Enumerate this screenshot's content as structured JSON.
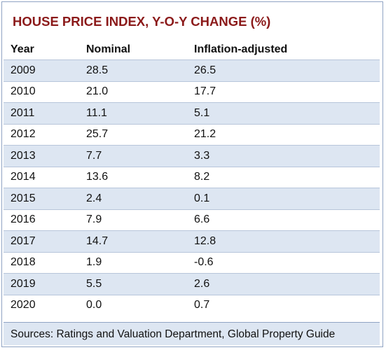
{
  "chart_data": {
    "type": "table",
    "title": "HOUSE PRICE INDEX, Y-O-Y CHANGE (%)",
    "columns": [
      "Year",
      "Nominal",
      "Inflation-adjusted"
    ],
    "rows": [
      [
        "2009",
        "28.5",
        "26.5"
      ],
      [
        "2010",
        "21.0",
        "17.7"
      ],
      [
        "2011",
        "11.1",
        "5.1"
      ],
      [
        "2012",
        "25.7",
        "21.2"
      ],
      [
        "2013",
        "7.7",
        "3.3"
      ],
      [
        "2014",
        "13.6",
        "8.2"
      ],
      [
        "2015",
        "2.4",
        "0.1"
      ],
      [
        "2016",
        "7.9",
        "6.6"
      ],
      [
        "2017",
        "14.7",
        "12.8"
      ],
      [
        "2018",
        "1.9",
        "-0.6"
      ],
      [
        "2019",
        "5.5",
        "2.6"
      ],
      [
        "2020",
        "0.0",
        "0.7"
      ]
    ],
    "source": "Sources: Ratings and Valuation Department, Global Property Guide"
  },
  "colors": {
    "title": "#8b1a1a",
    "band": "#dde6f2",
    "border": "#8fa3c3"
  }
}
